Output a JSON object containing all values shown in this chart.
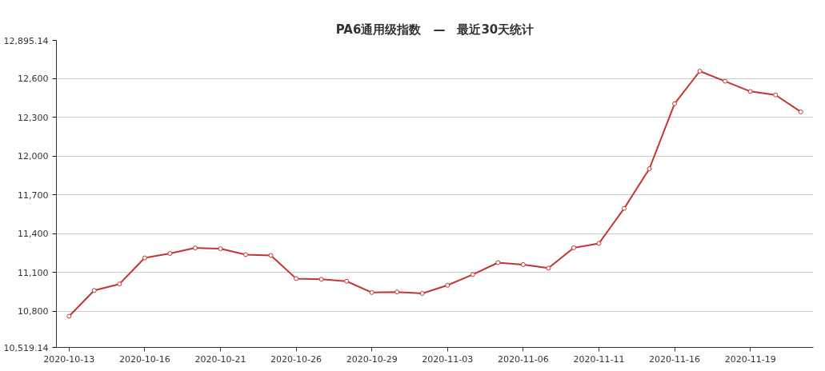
{
  "chart_data": {
    "type": "line",
    "title": "PA6通用级指数　—　最近30天统计",
    "categories": [
      "2020-10-13",
      null,
      null,
      "2020-10-16",
      null,
      null,
      "2020-10-21",
      null,
      null,
      "2020-10-26",
      null,
      null,
      "2020-10-29",
      null,
      null,
      "2020-11-03",
      null,
      null,
      "2020-11-06",
      null,
      null,
      "2020-11-11",
      null,
      null,
      "2020-11-16",
      null,
      null,
      "2020-11-19",
      null,
      null
    ],
    "series": [
      {
        "color": "#c23531",
        "values": [
          10760,
          10960,
          11010,
          11212,
          11246,
          11289,
          11283,
          11237,
          11231,
          11052,
          11046,
          11031,
          10944,
          10948,
          10937,
          11000,
          11083,
          11175,
          11160,
          11133,
          11290,
          11324,
          11595,
          11902,
          12405,
          12657,
          12579,
          12500,
          12473,
          12342
        ]
      }
    ],
    "ylim": [
      10519.14,
      12895.14
    ],
    "yticks": [
      {
        "value": 10519.14,
        "label": "10,519.14"
      },
      {
        "value": 10800,
        "label": "10,800"
      },
      {
        "value": 11100,
        "label": "11,100"
      },
      {
        "value": 11400,
        "label": "11,400"
      },
      {
        "value": 11700,
        "label": "11,700"
      },
      {
        "value": 12000,
        "label": "12,000"
      },
      {
        "value": 12300,
        "label": "12,300"
      },
      {
        "value": 12600,
        "label": "12,600"
      },
      {
        "value": 12895.14,
        "label": "12,895.14"
      }
    ],
    "grid": "y",
    "marker": "circle",
    "line_style": "solid"
  }
}
